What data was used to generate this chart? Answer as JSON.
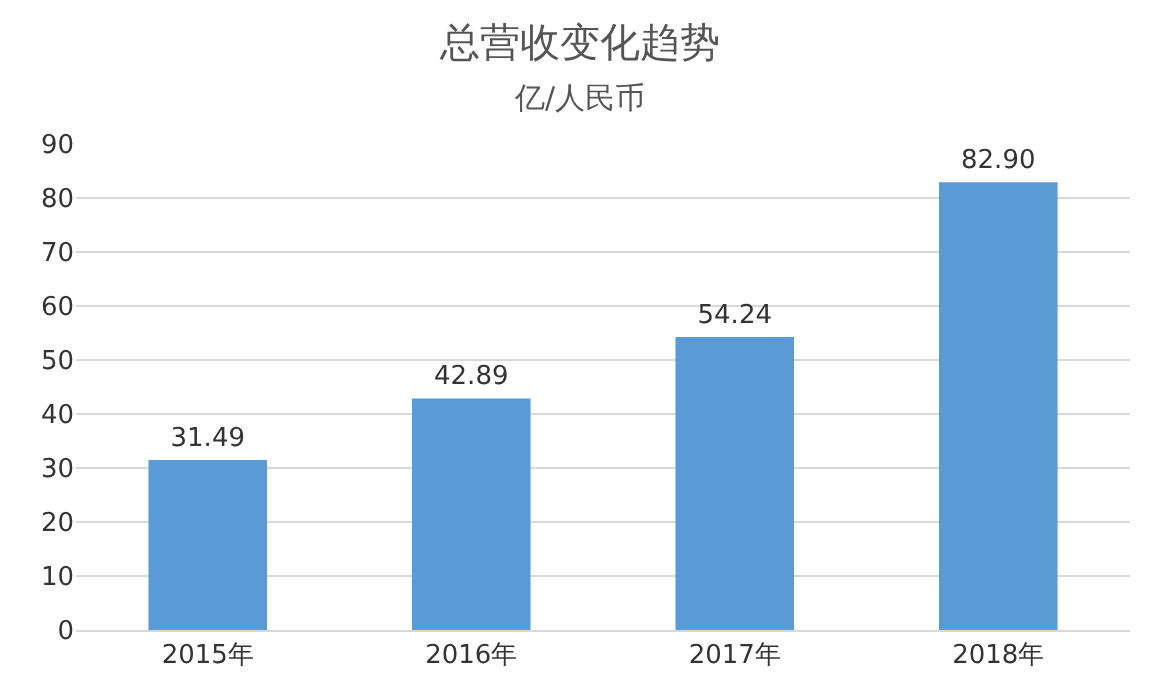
{
  "chart_data": {
    "type": "bar",
    "title": "总营收变化趋势",
    "subtitle": "亿/人民币",
    "categories": [
      "2015年",
      "2016年",
      "2017年",
      "2018年"
    ],
    "values": [
      31.49,
      42.89,
      54.24,
      82.9
    ],
    "value_labels": [
      "31.49",
      "42.89",
      "54.24",
      "82.90"
    ],
    "color": "#5b9bd5",
    "ylim": [
      0,
      90
    ],
    "yticks": [
      0,
      10,
      20,
      30,
      40,
      50,
      60,
      70,
      80,
      90
    ],
    "grid": "y",
    "legend": false
  }
}
